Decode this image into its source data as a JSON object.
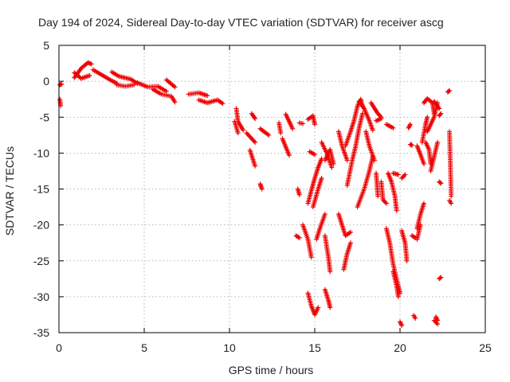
{
  "chart_data": {
    "type": "scatter",
    "title": "Day 194 of 2024, Sidereal Day-to-day VTEC variation (SDTVAR) for receiver ascg",
    "xlabel": "GPS time / hours",
    "ylabel": "SDTVAR / TECUs",
    "xlim": [
      0,
      25
    ],
    "ylim": [
      -35,
      5
    ],
    "xticks": [
      "0",
      "5",
      "10",
      "15",
      "20",
      "25"
    ],
    "yticks": [
      "5",
      "0",
      "-5",
      "-10",
      "-15",
      "-20",
      "-25",
      "-30",
      "-35"
    ],
    "grid": true,
    "marker": "+",
    "color": "#ee0000",
    "series": [
      {
        "segments": [
          [
            [
              0.05,
              -0.5
            ],
            [
              0.15,
              -0.4
            ]
          ],
          [
            [
              0.05,
              -2.5
            ],
            [
              0.1,
              -3.4
            ]
          ],
          [
            [
              0.9,
              0.5
            ],
            [
              1.3,
              1.8
            ],
            [
              1.7,
              2.6
            ],
            [
              1.9,
              2.4
            ]
          ],
          [
            [
              0.9,
              1.2
            ],
            [
              1.3,
              0.4
            ],
            [
              1.8,
              0.8
            ]
          ],
          [
            [
              2.0,
              1.6
            ],
            [
              2.5,
              0.9
            ],
            [
              3.0,
              0.2
            ],
            [
              3.4,
              -0.3
            ]
          ],
          [
            [
              3.1,
              1.3
            ],
            [
              3.5,
              0.7
            ],
            [
              4.2,
              0.3
            ],
            [
              4.6,
              -0.3
            ]
          ],
          [
            [
              3.4,
              -0.5
            ],
            [
              3.9,
              -0.7
            ],
            [
              4.4,
              -0.5
            ]
          ],
          [
            [
              4.6,
              -0.2
            ],
            [
              5.2,
              -0.8
            ],
            [
              5.8,
              -0.7
            ],
            [
              6.3,
              -1.4
            ]
          ],
          [
            [
              5.5,
              -1.1
            ],
            [
              6.0,
              -1.8
            ],
            [
              6.6,
              -2.1
            ],
            [
              6.8,
              -2.9
            ]
          ],
          [
            [
              6.3,
              0.2
            ],
            [
              6.8,
              -0.8
            ]
          ],
          [
            [
              7.6,
              -1.8
            ],
            [
              8.2,
              -1.6
            ],
            [
              8.7,
              -2.0
            ]
          ],
          [
            [
              8.2,
              -2.6
            ],
            [
              8.7,
              -3.0
            ],
            [
              9.3,
              -2.6
            ],
            [
              9.6,
              -3.1
            ]
          ],
          [
            [
              10.4,
              -3.8
            ],
            [
              10.5,
              -5.6
            ],
            [
              10.8,
              -6.8
            ]
          ],
          [
            [
              10.3,
              -5.6
            ],
            [
              10.5,
              -7.2
            ]
          ],
          [
            [
              11.0,
              -7.2
            ],
            [
              11.5,
              -8.5
            ]
          ],
          [
            [
              11.2,
              -9.6
            ],
            [
              11.5,
              -11.8
            ]
          ],
          [
            [
              11.3,
              -4.5
            ],
            [
              11.5,
              -5.2
            ]
          ],
          [
            [
              11.8,
              -14.3
            ],
            [
              11.9,
              -15.0
            ]
          ],
          [
            [
              11.8,
              -6.6
            ],
            [
              12.3,
              -7.5
            ]
          ],
          [
            [
              12.9,
              -5.8
            ],
            [
              13.0,
              -7.2
            ]
          ],
          [
            [
              13.1,
              -8.0
            ],
            [
              13.5,
              -10.3
            ]
          ],
          [
            [
              13.3,
              -4.6
            ],
            [
              13.7,
              -6.6
            ]
          ],
          [
            [
              14.1,
              -5.8
            ],
            [
              14.3,
              -5.9
            ]
          ],
          [
            [
              14.0,
              -15.0
            ],
            [
              14.1,
              -15.8
            ]
          ],
          [
            [
              13.9,
              -21.5
            ],
            [
              14.1,
              -21.8
            ]
          ],
          [
            [
              14.6,
              -5.3
            ],
            [
              14.9,
              -4.8
            ],
            [
              15.0,
              -6.0
            ]
          ],
          [
            [
              14.3,
              -20.0
            ],
            [
              14.6,
              -22.0
            ],
            [
              14.8,
              -24.5
            ]
          ],
          [
            [
              14.7,
              -9.8
            ],
            [
              15.0,
              -10.2
            ]
          ],
          [
            [
              14.6,
              -17.0
            ],
            [
              14.8,
              -15.2
            ],
            [
              15.0,
              -13.5
            ],
            [
              15.2,
              -12.0
            ],
            [
              15.4,
              -10.8
            ]
          ],
          [
            [
              14.9,
              -17.5
            ],
            [
              15.2,
              -15.0
            ],
            [
              15.4,
              -13.5
            ]
          ],
          [
            [
              14.6,
              -29.5
            ],
            [
              14.8,
              -31.3
            ],
            [
              15.0,
              -32.5
            ],
            [
              15.2,
              -31.5
            ]
          ],
          [
            [
              15.1,
              -22.0
            ],
            [
              15.3,
              -20.5
            ],
            [
              15.6,
              -18.5
            ]
          ],
          [
            [
              15.4,
              -8.5
            ],
            [
              15.7,
              -10.0
            ],
            [
              16.0,
              -12.0
            ]
          ],
          [
            [
              15.6,
              -11.0
            ],
            [
              15.9,
              -9.5
            ],
            [
              16.1,
              -11.5
            ]
          ],
          [
            [
              15.6,
              -21.5
            ],
            [
              15.8,
              -24.5
            ],
            [
              15.9,
              -26.5
            ]
          ],
          [
            [
              15.6,
              -29.0
            ],
            [
              15.8,
              -30.5
            ],
            [
              15.9,
              -31.5
            ]
          ],
          [
            [
              16.4,
              -7.0
            ],
            [
              16.6,
              -9.0
            ],
            [
              16.9,
              -11.0
            ]
          ],
          [
            [
              16.4,
              -18.5
            ],
            [
              16.6,
              -20.0
            ],
            [
              16.8,
              -21.5
            ],
            [
              17.1,
              -21.0
            ]
          ],
          [
            [
              16.7,
              -26.2
            ],
            [
              16.9,
              -24.0
            ],
            [
              17.1,
              -22.5
            ]
          ],
          [
            [
              16.8,
              -9.0
            ],
            [
              17.1,
              -7.0
            ],
            [
              17.3,
              -5.5
            ],
            [
              17.5,
              -3.5
            ],
            [
              17.7,
              -2.5
            ],
            [
              17.8,
              -3.5
            ]
          ],
          [
            [
              16.9,
              -14.5
            ],
            [
              17.2,
              -11.0
            ],
            [
              17.4,
              -9.0
            ],
            [
              17.6,
              -6.5
            ],
            [
              17.8,
              -4.5
            ]
          ],
          [
            [
              17.6,
              -2.8
            ],
            [
              17.9,
              -3.8
            ],
            [
              18.2,
              -5.5
            ],
            [
              18.4,
              -6.8
            ]
          ],
          [
            [
              17.5,
              -17.5
            ],
            [
              17.9,
              -15.0
            ],
            [
              18.2,
              -12.5
            ],
            [
              18.4,
              -10.5
            ]
          ],
          [
            [
              18.0,
              -7.0
            ],
            [
              18.2,
              -9.0
            ],
            [
              18.5,
              -11.0
            ]
          ],
          [
            [
              18.3,
              -3.0
            ],
            [
              18.7,
              -4.5
            ],
            [
              18.9,
              -5.0
            ]
          ],
          [
            [
              18.6,
              -5.5
            ],
            [
              18.9,
              -5.2
            ]
          ],
          [
            [
              18.6,
              -12.8
            ],
            [
              18.7,
              -16.0
            ]
          ],
          [
            [
              18.9,
              -14.0
            ],
            [
              19.0,
              -16.5
            ],
            [
              19.2,
              -17.0
            ]
          ],
          [
            [
              19.2,
              -20.5
            ],
            [
              19.4,
              -22.5
            ],
            [
              19.6,
              -25.5
            ],
            [
              19.9,
              -28.5
            ],
            [
              20.0,
              -29.5
            ]
          ],
          [
            [
              19.3,
              -12.8
            ],
            [
              19.5,
              -14.0
            ],
            [
              19.7,
              -16.0
            ],
            [
              19.8,
              -18.0
            ]
          ],
          [
            [
              19.6,
              -12.8
            ],
            [
              19.9,
              -13.0
            ]
          ],
          [
            [
              19.6,
              -26.5
            ],
            [
              19.8,
              -28.5
            ],
            [
              19.9,
              -30.0
            ]
          ],
          [
            [
              19.2,
              -6.0
            ],
            [
              19.6,
              -6.5
            ]
          ],
          [
            [
              20.1,
              -20.8
            ],
            [
              20.3,
              -22.5
            ],
            [
              20.4,
              -25.0
            ]
          ],
          [
            [
              20.0,
              -33.5
            ],
            [
              20.1,
              -34.0
            ]
          ],
          [
            [
              20.1,
              -13.5
            ],
            [
              20.3,
              -13.0
            ]
          ],
          [
            [
              20.5,
              -6.5
            ],
            [
              20.6,
              -6.0
            ]
          ],
          [
            [
              20.6,
              -8.8
            ],
            [
              20.7,
              -8.9
            ]
          ],
          [
            [
              20.7,
              -21.5
            ],
            [
              20.9,
              -21.8
            ]
          ],
          [
            [
              20.8,
              -32.6
            ],
            [
              20.9,
              -33.0
            ]
          ],
          [
            [
              21.0,
              -20.5
            ],
            [
              21.2,
              -18.5
            ],
            [
              21.4,
              -17.0
            ]
          ],
          [
            [
              21.0,
              -22.0
            ],
            [
              21.2,
              -20.0
            ]
          ],
          [
            [
              21.0,
              -9.0
            ],
            [
              21.2,
              -10.2
            ],
            [
              21.4,
              -11.5
            ]
          ],
          [
            [
              21.3,
              -8.5
            ],
            [
              21.5,
              -6.0
            ],
            [
              21.6,
              -5.0
            ]
          ],
          [
            [
              21.4,
              -3.0
            ],
            [
              21.6,
              -2.4
            ],
            [
              21.9,
              -3.0
            ],
            [
              22.0,
              -4.5
            ]
          ],
          [
            [
              21.5,
              -8.5
            ],
            [
              21.7,
              -9.5
            ],
            [
              21.8,
              -11.5
            ]
          ],
          [
            [
              21.6,
              -7.0
            ],
            [
              21.8,
              -6.0
            ],
            [
              22.0,
              -5.0
            ],
            [
              22.2,
              -3.0
            ]
          ],
          [
            [
              21.8,
              -12.5
            ],
            [
              22.0,
              -10.5
            ],
            [
              22.2,
              -8.5
            ]
          ],
          [
            [
              22.0,
              -2.8
            ],
            [
              22.3,
              -3.8
            ]
          ],
          [
            [
              22.0,
              -33.3
            ],
            [
              22.2,
              -33.8
            ]
          ],
          [
            [
              22.1,
              -32.8
            ],
            [
              22.2,
              -33.3
            ]
          ],
          [
            [
              22.3,
              -4.8
            ],
            [
              22.4,
              -4.5
            ]
          ],
          [
            [
              22.3,
              -14.0
            ],
            [
              22.4,
              -14.2
            ]
          ],
          [
            [
              22.3,
              -27.5
            ],
            [
              22.4,
              -27.3
            ]
          ],
          [
            [
              22.8,
              -1.5
            ],
            [
              22.9,
              -1.3
            ]
          ],
          [
            [
              22.9,
              -7.0
            ],
            [
              23.0,
              -16.0
            ]
          ],
          [
            [
              22.9,
              -16.6
            ],
            [
              23.0,
              -17.0
            ]
          ]
        ]
      }
    ]
  }
}
